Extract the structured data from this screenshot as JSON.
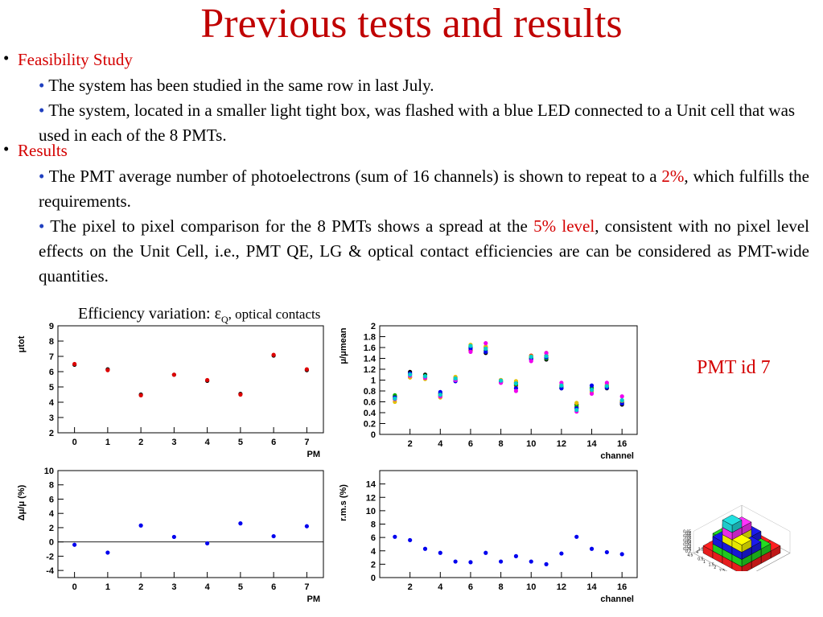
{
  "slide": {
    "title": "Previous tests and results",
    "b1_label": "Feasibility Study",
    "b1_s1": "The system has been studied in the same row in last July.",
    "b1_s2": "The system, located in a smaller light tight box, was flashed with a blue LED connected to a Unit cell that was used in each of the 8 PMTs.",
    "b2_label": "Results",
    "b2_s1_pre": "The PMT average number of photoelectrons (sum of 16 channels) is shown to repeat to a ",
    "b2_s1_hl": "2%",
    "b2_s1_post": ", which fulfills the requirements.",
    "b2_s2_pre": "The pixel to pixel comparison for the 8 PMTs shows a spread at the ",
    "b2_s2_hl": "5% level",
    "b2_s2_post": ", consistent with no pixel level effects on the Unit Cell, i.e., PMT QE, LG & optical contact efficiencies are can be considered as PMT-wide quantities.",
    "caption_pre": "Efficiency variation: ",
    "caption_sym": "ε",
    "caption_sub": "Q",
    "caption_post": ", optical contacts",
    "pmt_label": "PMT id 7"
  },
  "chart_data": [
    {
      "type": "scatter",
      "ylabel": "μtot",
      "xlabel": "PM",
      "xlim": [
        -0.5,
        7.5
      ],
      "ylim": [
        2,
        9
      ],
      "xticks": [
        0,
        1,
        2,
        3,
        4,
        5,
        6,
        7
      ],
      "yticks": [
        2,
        3,
        4,
        5,
        6,
        7,
        8,
        9
      ],
      "series": [
        {
          "color": "#000000",
          "x": [
            0,
            1,
            2,
            3,
            4,
            5,
            6,
            7
          ],
          "values": [
            6.45,
            6.15,
            4.5,
            5.8,
            5.4,
            4.55,
            7.05,
            6.1
          ]
        },
        {
          "color": "#dd0000",
          "x": [
            0,
            1,
            2,
            3,
            4,
            5,
            6,
            7
          ],
          "values": [
            6.5,
            6.1,
            4.45,
            5.8,
            5.45,
            4.5,
            7.1,
            6.15
          ]
        }
      ]
    },
    {
      "type": "scatter",
      "ylabel": "μ/μmean",
      "xlabel": "channel",
      "xlim": [
        0,
        17
      ],
      "ylim": [
        0,
        2
      ],
      "xticks": [
        2,
        4,
        6,
        8,
        10,
        12,
        14,
        16
      ],
      "yticks": [
        0,
        0.2,
        0.4,
        0.6,
        0.8,
        1,
        1.2,
        1.4,
        1.6,
        1.8,
        2
      ],
      "series": [
        {
          "color": "#000000",
          "x": [
            1,
            2,
            3,
            4,
            5,
            6,
            7,
            8,
            9,
            10,
            11,
            12,
            13,
            14,
            15,
            16
          ],
          "values": [
            0.7,
            1.15,
            1.1,
            0.75,
            1.0,
            1.6,
            1.5,
            0.97,
            0.95,
            1.4,
            1.38,
            0.85,
            0.55,
            0.85,
            0.85,
            0.55
          ]
        },
        {
          "color": "#dd0000",
          "x": [
            1,
            2,
            3,
            4,
            5,
            6,
            7,
            8,
            9,
            10,
            11,
            12,
            13,
            14,
            15,
            16
          ],
          "values": [
            0.65,
            1.05,
            1.05,
            0.7,
            1.05,
            1.55,
            1.6,
            1.0,
            0.9,
            1.45,
            1.45,
            0.9,
            0.5,
            0.8,
            0.9,
            0.6
          ]
        },
        {
          "color": "#00aa00",
          "x": [
            1,
            2,
            3,
            4,
            5,
            6,
            7,
            8,
            9,
            10,
            11,
            12,
            13,
            14,
            15,
            16
          ],
          "values": [
            0.72,
            1.1,
            1.08,
            0.72,
            1.02,
            1.62,
            1.55,
            0.98,
            0.92,
            1.42,
            1.4,
            0.88,
            0.52,
            0.86,
            0.88,
            0.58
          ]
        },
        {
          "color": "#0000ee",
          "x": [
            1,
            2,
            3,
            4,
            5,
            6,
            7,
            8,
            9,
            10,
            11,
            12,
            13,
            14,
            15,
            16
          ],
          "values": [
            0.68,
            1.12,
            1.06,
            0.78,
            0.98,
            1.58,
            1.52,
            0.96,
            0.85,
            1.38,
            1.42,
            0.85,
            0.48,
            0.9,
            0.86,
            0.57
          ]
        },
        {
          "color": "#e0c000",
          "x": [
            1,
            2,
            3,
            4,
            5,
            6,
            7,
            8,
            9,
            10,
            11,
            12,
            13,
            14,
            15,
            16
          ],
          "values": [
            0.6,
            1.05,
            1.02,
            0.68,
            1.06,
            1.65,
            1.62,
            1.0,
            0.98,
            1.44,
            1.5,
            0.92,
            0.58,
            0.78,
            0.92,
            0.62
          ]
        },
        {
          "color": "#ee00ee",
          "x": [
            1,
            2,
            3,
            4,
            5,
            6,
            7,
            8,
            9,
            10,
            11,
            12,
            13,
            14,
            15,
            16
          ],
          "values": [
            0.65,
            1.08,
            1.04,
            0.7,
            1.0,
            1.52,
            1.68,
            0.95,
            0.8,
            1.35,
            1.5,
            0.95,
            0.42,
            0.75,
            0.95,
            0.7
          ]
        },
        {
          "color": "#00cccc",
          "x": [
            1,
            2,
            3,
            4,
            5,
            6,
            7,
            8,
            9,
            10,
            11,
            12,
            13,
            14,
            15,
            16
          ],
          "values": [
            0.66,
            1.1,
            1.07,
            0.73,
            1.03,
            1.63,
            1.58,
            0.99,
            0.94,
            1.43,
            1.44,
            0.9,
            0.45,
            0.82,
            0.89,
            0.63
          ]
        }
      ]
    },
    {
      "type": "scatter",
      "ylabel": "Δμ/μ (%)",
      "xlabel": "PM",
      "xlim": [
        -0.5,
        7.5
      ],
      "ylim": [
        -5,
        10
      ],
      "xticks": [
        0,
        1,
        2,
        3,
        4,
        5,
        6,
        7
      ],
      "yticks": [
        -4,
        -2,
        0,
        2,
        4,
        6,
        8,
        10
      ],
      "zero_line": true,
      "series": [
        {
          "color": "#0000ee",
          "x": [
            0,
            1,
            2,
            3,
            4,
            5,
            6,
            7
          ],
          "values": [
            -0.4,
            -1.5,
            2.3,
            0.7,
            -0.2,
            2.6,
            0.8,
            2.2
          ]
        }
      ]
    },
    {
      "type": "scatter",
      "ylabel": "r.m.s (%)",
      "xlabel": "channel",
      "xlim": [
        0,
        17
      ],
      "ylim": [
        0,
        16
      ],
      "xticks": [
        2,
        4,
        6,
        8,
        10,
        12,
        14,
        16
      ],
      "yticks": [
        0,
        2,
        4,
        6,
        8,
        10,
        12,
        14
      ],
      "series": [
        {
          "color": "#0000ee",
          "x": [
            1,
            2,
            3,
            4,
            5,
            6,
            7,
            8,
            9,
            10,
            11,
            12,
            13,
            14,
            15,
            16
          ],
          "values": [
            6.1,
            5.6,
            4.3,
            3.7,
            2.4,
            2.3,
            3.7,
            2.4,
            3.2,
            2.4,
            2.0,
            3.6,
            6.1,
            4.3,
            3.8,
            3.5
          ]
        }
      ]
    }
  ],
  "lego_axes": {
    "zticks": [
      "0.65",
      "0.6",
      "0.55",
      "0.5",
      "0.45",
      "0.4",
      "0.35",
      "0.3",
      "0.25",
      "0.2"
    ],
    "yticks": [
      "4.5",
      "4",
      "3.5",
      "3",
      "2.5",
      "2",
      "1.5",
      "1",
      "0.5"
    ],
    "xticks": [
      "0.5",
      "1",
      "1.5",
      "2",
      "2.5",
      "3",
      "3.5",
      "4",
      "4.5"
    ]
  }
}
